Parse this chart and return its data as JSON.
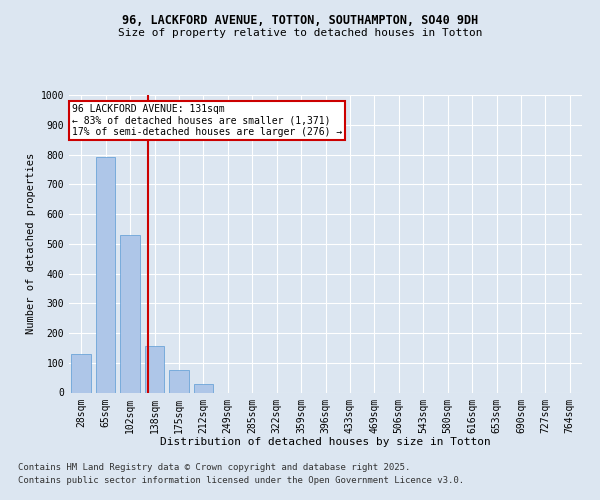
{
  "title_line1": "96, LACKFORD AVENUE, TOTTON, SOUTHAMPTON, SO40 9DH",
  "title_line2": "Size of property relative to detached houses in Totton",
  "xlabel": "Distribution of detached houses by size in Totton",
  "ylabel": "Number of detached properties",
  "categories": [
    "28sqm",
    "65sqm",
    "102sqm",
    "138sqm",
    "175sqm",
    "212sqm",
    "249sqm",
    "285sqm",
    "322sqm",
    "359sqm",
    "396sqm",
    "433sqm",
    "469sqm",
    "506sqm",
    "543sqm",
    "580sqm",
    "616sqm",
    "653sqm",
    "690sqm",
    "727sqm",
    "764sqm"
  ],
  "values": [
    130,
    790,
    530,
    155,
    75,
    30,
    0,
    0,
    0,
    0,
    0,
    0,
    0,
    0,
    0,
    0,
    0,
    0,
    0,
    0,
    0
  ],
  "bar_color": "#aec6e8",
  "bar_edgecolor": "#5b9bd5",
  "vline_color": "#cc0000",
  "vline_pos": 2.72,
  "annotation_text": "96 LACKFORD AVENUE: 131sqm\n← 83% of detached houses are smaller (1,371)\n17% of semi-detached houses are larger (276) →",
  "annotation_box_color": "#cc0000",
  "ylim": [
    0,
    1000
  ],
  "yticks": [
    0,
    100,
    200,
    300,
    400,
    500,
    600,
    700,
    800,
    900,
    1000
  ],
  "background_color": "#dce6f1",
  "plot_bg_color": "#dce6f1",
  "grid_color": "#ffffff",
  "footer_line1": "Contains HM Land Registry data © Crown copyright and database right 2025.",
  "footer_line2": "Contains public sector information licensed under the Open Government Licence v3.0.",
  "footer_fontsize": 6.5,
  "title1_fontsize": 8.5,
  "title2_fontsize": 8,
  "xlabel_fontsize": 8,
  "ylabel_fontsize": 7.5,
  "tick_fontsize": 7,
  "ann_fontsize": 7
}
